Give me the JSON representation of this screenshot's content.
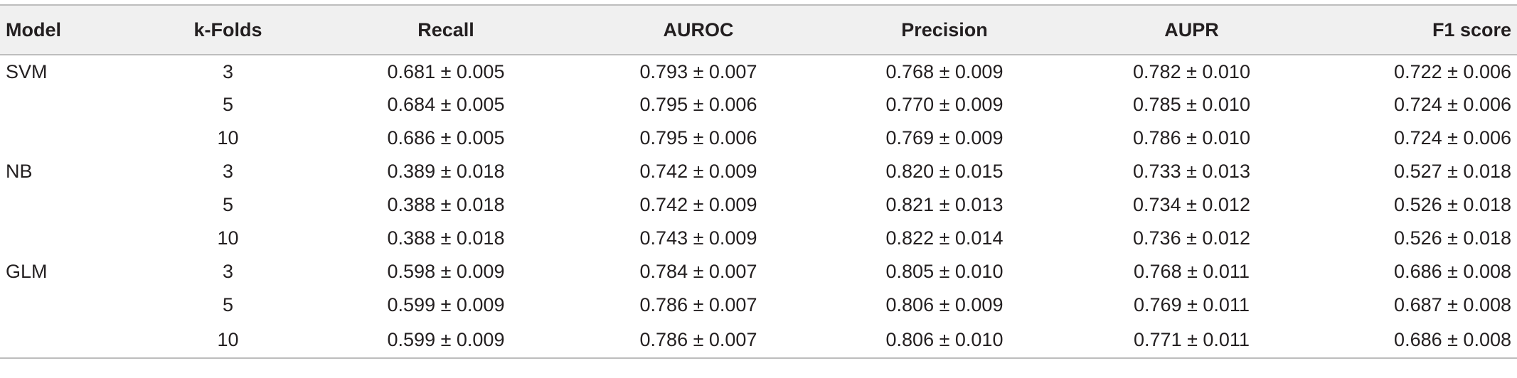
{
  "table": {
    "headers": [
      "Model",
      "k-Folds",
      "Recall",
      "AUROC",
      "Precision",
      "AUPR",
      "F1 score"
    ],
    "rows": [
      [
        "SVM",
        "3",
        "0.681 ± 0.005",
        "0.793 ± 0.007",
        "0.768 ± 0.009",
        "0.782 ± 0.010",
        "0.722 ± 0.006"
      ],
      [
        "",
        "5",
        "0.684 ± 0.005",
        "0.795 ± 0.006",
        "0.770 ± 0.009",
        "0.785 ± 0.010",
        "0.724 ± 0.006"
      ],
      [
        "",
        "10",
        "0.686 ± 0.005",
        "0.795 ± 0.006",
        "0.769 ± 0.009",
        "0.786 ± 0.010",
        "0.724 ± 0.006"
      ],
      [
        "NB",
        "3",
        "0.389 ± 0.018",
        "0.742 ± 0.009",
        "0.820 ± 0.015",
        "0.733 ± 0.013",
        "0.527 ± 0.018"
      ],
      [
        "",
        "5",
        "0.388 ± 0.018",
        "0.742 ± 0.009",
        "0.821 ± 0.013",
        "0.734 ± 0.012",
        "0.526 ± 0.018"
      ],
      [
        "",
        "10",
        "0.388 ± 0.018",
        "0.743 ± 0.009",
        "0.822 ± 0.014",
        "0.736 ± 0.012",
        "0.526 ± 0.018"
      ],
      [
        "GLM",
        "3",
        "0.598 ± 0.009",
        "0.784 ± 0.007",
        "0.805 ± 0.010",
        "0.768 ± 0.011",
        "0.686 ± 0.008"
      ],
      [
        "",
        "5",
        "0.599 ± 0.009",
        "0.786 ± 0.007",
        "0.806 ± 0.009",
        "0.769 ± 0.011",
        "0.687 ± 0.008"
      ],
      [
        "",
        "10",
        "0.599 ± 0.009",
        "0.786 ± 0.007",
        "0.806 ± 0.010",
        "0.771 ± 0.011",
        "0.686 ± 0.008"
      ]
    ]
  }
}
